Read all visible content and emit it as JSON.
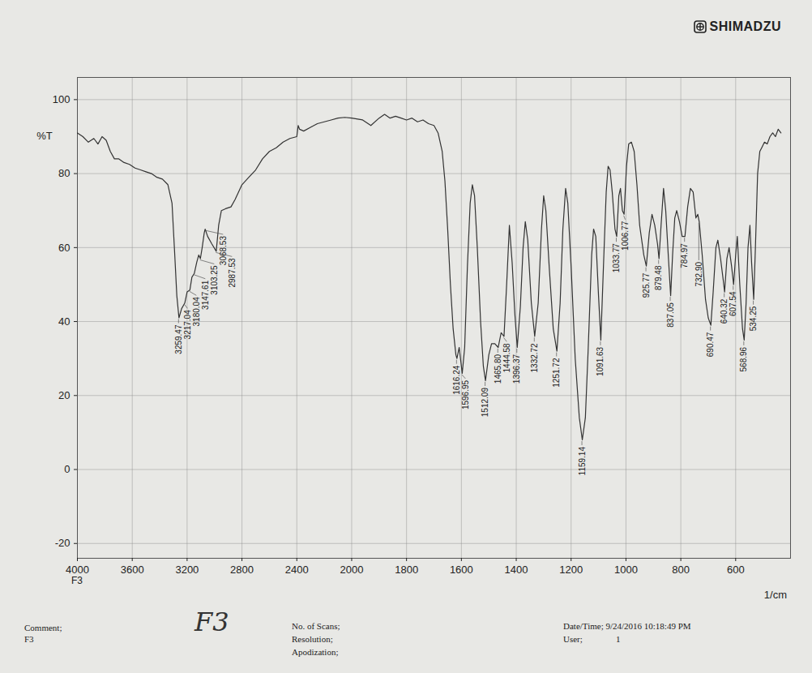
{
  "chart_data": {
    "type": "line",
    "xlabel": "1/cm",
    "ylabel": "%T",
    "color": "#333333",
    "grid": true,
    "xlim": [
      4000,
      400
    ],
    "ylim": [
      -24,
      106
    ],
    "xticks": [
      4000,
      3600,
      3200,
      2800,
      2400,
      2000,
      1800,
      1600,
      1400,
      1200,
      1000,
      800,
      600
    ],
    "yticks": [
      -20,
      0,
      20,
      40,
      60,
      80,
      100
    ],
    "x": [
      4000,
      3960,
      3920,
      3880,
      3850,
      3820,
      3790,
      3760,
      3730,
      3700,
      3660,
      3620,
      3580,
      3540,
      3500,
      3460,
      3420,
      3380,
      3340,
      3310,
      3290,
      3275,
      3259.47,
      3240,
      3217.04,
      3200,
      3180.04,
      3165,
      3147.61,
      3130,
      3115,
      3103.25,
      3090,
      3075,
      3068.53,
      3050,
      3020,
      2987.53,
      2970,
      2950,
      2920,
      2880,
      2850,
      2800,
      2750,
      2700,
      2650,
      2600,
      2550,
      2500,
      2450,
      2400,
      2390,
      2380,
      2350,
      2300,
      2250,
      2200,
      2150,
      2100,
      2050,
      2000,
      1960,
      1930,
      1900,
      1880,
      1860,
      1840,
      1820,
      1800,
      1780,
      1760,
      1740,
      1720,
      1700,
      1685,
      1670,
      1660,
      1650,
      1640,
      1630,
      1620,
      1616.24,
      1608,
      1596.95,
      1588,
      1578,
      1568,
      1560,
      1552,
      1542,
      1530,
      1520,
      1512.09,
      1500,
      1490,
      1478,
      1465.8,
      1455,
      1444.58,
      1435,
      1425,
      1415,
      1405,
      1396.37,
      1385,
      1375,
      1367,
      1358,
      1345,
      1332.72,
      1320,
      1308,
      1300,
      1292,
      1280,
      1265,
      1251.72,
      1240,
      1230,
      1220,
      1212,
      1200,
      1185,
      1170,
      1159.14,
      1148,
      1138,
      1125,
      1118,
      1110,
      1100,
      1091.63,
      1082,
      1072,
      1065,
      1058,
      1050,
      1040,
      1033.77,
      1026,
      1020,
      1013,
      1006.77,
      998,
      990,
      980,
      970,
      960,
      950,
      935,
      925.77,
      915,
      905,
      895,
      885,
      879.48,
      872,
      863,
      855,
      845,
      837.05,
      830,
      822,
      815,
      805,
      795,
      784.97,
      775,
      765,
      755,
      745,
      738,
      732.9,
      722,
      710,
      700,
      690.47,
      682,
      672,
      665,
      655,
      645,
      640.32,
      632,
      624,
      615,
      607.54,
      600,
      594,
      585,
      575,
      568.96,
      562,
      555,
      548,
      542,
      534.25,
      528,
      520,
      512,
      505,
      495,
      485,
      475,
      465,
      455,
      445,
      435
    ],
    "values": [
      91,
      90,
      88.5,
      89.5,
      88,
      90,
      89,
      86,
      84,
      84,
      83,
      82.5,
      81.5,
      81,
      80.5,
      80,
      79,
      78.5,
      77,
      72,
      58,
      47,
      41,
      43.5,
      45,
      48,
      48.5,
      52,
      53,
      56,
      58,
      57,
      60,
      64,
      65,
      63,
      61,
      59,
      66,
      70,
      70.5,
      71,
      73,
      77,
      79,
      81,
      84,
      86,
      87,
      88.5,
      89.5,
      90,
      93,
      92,
      91.5,
      92.5,
      93.5,
      94,
      94.5,
      95,
      95.2,
      95,
      94.5,
      93,
      95,
      96,
      95,
      95.5,
      95,
      94.5,
      95,
      94,
      94.5,
      93.5,
      93,
      91,
      86,
      78,
      65,
      50,
      38,
      31,
      30,
      33,
      26,
      33,
      55,
      72,
      77,
      74,
      60,
      40,
      28,
      24,
      31,
      34,
      34,
      33,
      37,
      36,
      50,
      66,
      56,
      42,
      33,
      44,
      60,
      67,
      62,
      45,
      36,
      45,
      65,
      74,
      70,
      55,
      38,
      32,
      45,
      65,
      76,
      72,
      55,
      30,
      14,
      8,
      14,
      32,
      58,
      65,
      63,
      47,
      35,
      55,
      75,
      82,
      81,
      75,
      65,
      63,
      74,
      76,
      70,
      69,
      82,
      88,
      88.5,
      86,
      77,
      66,
      58,
      55,
      64,
      69,
      66,
      61,
      57,
      66,
      76,
      70,
      57,
      47,
      58,
      68,
      70,
      67,
      63,
      63,
      71,
      76,
      75,
      68,
      69,
      67,
      58,
      46,
      41,
      39,
      48,
      60,
      62,
      57,
      51,
      48,
      57,
      60,
      55,
      50,
      58,
      63,
      50,
      38,
      35,
      45,
      60,
      66,
      56,
      46,
      60,
      80,
      86,
      87,
      88.5,
      88,
      90,
      91,
      90,
      92,
      91
    ],
    "annotations": [
      {
        "x": 3259.47,
        "y": 41,
        "text": "3259.47"
      },
      {
        "x": 3217.04,
        "y": 45,
        "text": "3217.04"
      },
      {
        "x": 3180.04,
        "y": 48.5,
        "text": "3180.04"
      },
      {
        "x": 3147.61,
        "y": 53,
        "text": "3147.61"
      },
      {
        "x": 3103.25,
        "y": 57,
        "text": "3103.25"
      },
      {
        "x": 3068.53,
        "y": 65,
        "text": "3068.53"
      },
      {
        "x": 2987.53,
        "y": 59,
        "text": "2987.53"
      },
      {
        "x": 1616.24,
        "y": 30,
        "text": "1616.24"
      },
      {
        "x": 1596.95,
        "y": 26,
        "text": "1596.95"
      },
      {
        "x": 1512.09,
        "y": 24,
        "text": "1512.09"
      },
      {
        "x": 1465.8,
        "y": 33,
        "text": "1465.80"
      },
      {
        "x": 1444.58,
        "y": 36,
        "text": "1444.58"
      },
      {
        "x": 1396.37,
        "y": 33,
        "text": "1396.37"
      },
      {
        "x": 1332.72,
        "y": 36,
        "text": "1332.72"
      },
      {
        "x": 1251.72,
        "y": 32,
        "text": "1251.72"
      },
      {
        "x": 1159.14,
        "y": 8,
        "text": "1159.14"
      },
      {
        "x": 1091.63,
        "y": 35,
        "text": "1091.63"
      },
      {
        "x": 1033.77,
        "y": 63,
        "text": "1033.77"
      },
      {
        "x": 1006.77,
        "y": 69,
        "text": "1006.77"
      },
      {
        "x": 925.77,
        "y": 55,
        "text": "925.77"
      },
      {
        "x": 879.48,
        "y": 57,
        "text": "879.48"
      },
      {
        "x": 837.05,
        "y": 47,
        "text": "837.05"
      },
      {
        "x": 784.97,
        "y": 63,
        "text": "784.97"
      },
      {
        "x": 732.9,
        "y": 67,
        "text": "732.90"
      },
      {
        "x": 690.47,
        "y": 39,
        "text": "690.47"
      },
      {
        "x": 640.32,
        "y": 48,
        "text": "640.32"
      },
      {
        "x": 607.54,
        "y": 50,
        "text": "607.54"
      },
      {
        "x": 568.96,
        "y": 35,
        "text": "568.96"
      },
      {
        "x": 534.25,
        "y": 46,
        "text": "534.25"
      }
    ]
  },
  "page": {
    "brand": "SHIMADZU",
    "axis_note": "F3",
    "handwritten": "F3",
    "footer": {
      "comment_label": "Comment;",
      "comment": "F3",
      "scans_label": "No. of Scans;",
      "resolution_label": "Resolution;",
      "apodization_label": "Apodization;",
      "datetime": "Date/Time; 9/24/2016 10:18:49 PM",
      "user_label": "User;",
      "user": "1"
    }
  }
}
